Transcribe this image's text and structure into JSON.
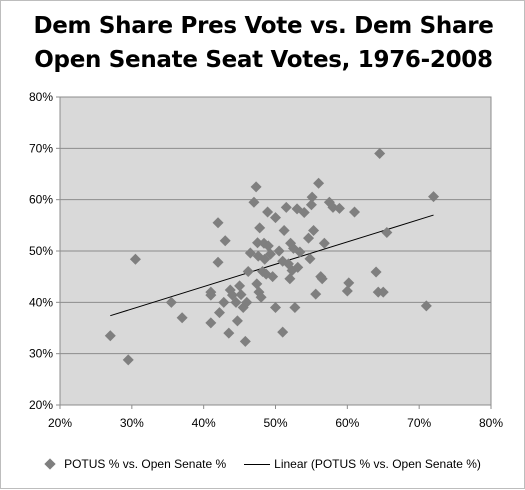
{
  "chart_data": {
    "type": "scatter",
    "title": [
      "Dem Share Pres Vote vs. Dem Share",
      "Open Senate Seat Votes, 1976-2008"
    ],
    "xlim": [
      0.2,
      0.8
    ],
    "ylim": [
      0.2,
      0.8
    ],
    "x_ticks": [
      "20%",
      "30%",
      "40%",
      "50%",
      "60%",
      "70%",
      "80%"
    ],
    "y_ticks": [
      "20%",
      "30%",
      "40%",
      "50%",
      "60%",
      "70%",
      "80%"
    ],
    "grid": "horizontal",
    "legend_position": "bottom",
    "series": [
      {
        "name": "POTUS % vs. Open Senate %",
        "marker": "diamond",
        "color": "#7f7f7f",
        "points": [
          [
            0.27,
            0.335
          ],
          [
            0.295,
            0.288
          ],
          [
            0.305,
            0.484
          ],
          [
            0.355,
            0.4
          ],
          [
            0.37,
            0.37
          ],
          [
            0.41,
            0.42
          ],
          [
            0.41,
            0.36
          ],
          [
            0.41,
            0.414
          ],
          [
            0.42,
            0.555
          ],
          [
            0.42,
            0.478
          ],
          [
            0.422,
            0.38
          ],
          [
            0.428,
            0.4
          ],
          [
            0.43,
            0.52
          ],
          [
            0.435,
            0.34
          ],
          [
            0.437,
            0.424
          ],
          [
            0.44,
            0.414
          ],
          [
            0.445,
            0.4
          ],
          [
            0.447,
            0.364
          ],
          [
            0.45,
            0.432
          ],
          [
            0.452,
            0.415
          ],
          [
            0.455,
            0.39
          ],
          [
            0.458,
            0.324
          ],
          [
            0.46,
            0.4
          ],
          [
            0.462,
            0.46
          ],
          [
            0.465,
            0.496
          ],
          [
            0.47,
            0.595
          ],
          [
            0.473,
            0.625
          ],
          [
            0.474,
            0.436
          ],
          [
            0.475,
            0.516
          ],
          [
            0.476,
            0.49
          ],
          [
            0.477,
            0.42
          ],
          [
            0.478,
            0.545
          ],
          [
            0.48,
            0.41
          ],
          [
            0.482,
            0.46
          ],
          [
            0.484,
            0.515
          ],
          [
            0.485,
            0.484
          ],
          [
            0.487,
            0.455
          ],
          [
            0.489,
            0.576
          ],
          [
            0.49,
            0.51
          ],
          [
            0.493,
            0.494
          ],
          [
            0.496,
            0.45
          ],
          [
            0.5,
            0.565
          ],
          [
            0.5,
            0.39
          ],
          [
            0.505,
            0.5
          ],
          [
            0.51,
            0.48
          ],
          [
            0.51,
            0.342
          ],
          [
            0.512,
            0.54
          ],
          [
            0.515,
            0.585
          ],
          [
            0.518,
            0.475
          ],
          [
            0.52,
            0.446
          ],
          [
            0.521,
            0.515
          ],
          [
            0.523,
            0.462
          ],
          [
            0.525,
            0.505
          ],
          [
            0.527,
            0.39
          ],
          [
            0.53,
            0.582
          ],
          [
            0.531,
            0.468
          ],
          [
            0.534,
            0.498
          ],
          [
            0.54,
            0.575
          ],
          [
            0.546,
            0.525
          ],
          [
            0.548,
            0.485
          ],
          [
            0.55,
            0.59
          ],
          [
            0.551,
            0.605
          ],
          [
            0.553,
            0.54
          ],
          [
            0.556,
            0.416
          ],
          [
            0.56,
            0.632
          ],
          [
            0.563,
            0.45
          ],
          [
            0.565,
            0.446
          ],
          [
            0.568,
            0.515
          ],
          [
            0.575,
            0.595
          ],
          [
            0.58,
            0.585
          ],
          [
            0.589,
            0.583
          ],
          [
            0.6,
            0.422
          ],
          [
            0.602,
            0.438
          ],
          [
            0.61,
            0.576
          ],
          [
            0.64,
            0.459
          ],
          [
            0.643,
            0.42
          ],
          [
            0.645,
            0.69
          ],
          [
            0.65,
            0.42
          ],
          [
            0.655,
            0.536
          ],
          [
            0.71,
            0.393
          ],
          [
            0.72,
            0.606
          ]
        ]
      },
      {
        "name": "Linear (POTUS % vs. Open Senate %)",
        "type": "line",
        "color": "#000000",
        "points": [
          [
            0.27,
            0.374
          ],
          [
            0.72,
            0.57
          ]
        ]
      }
    ]
  }
}
